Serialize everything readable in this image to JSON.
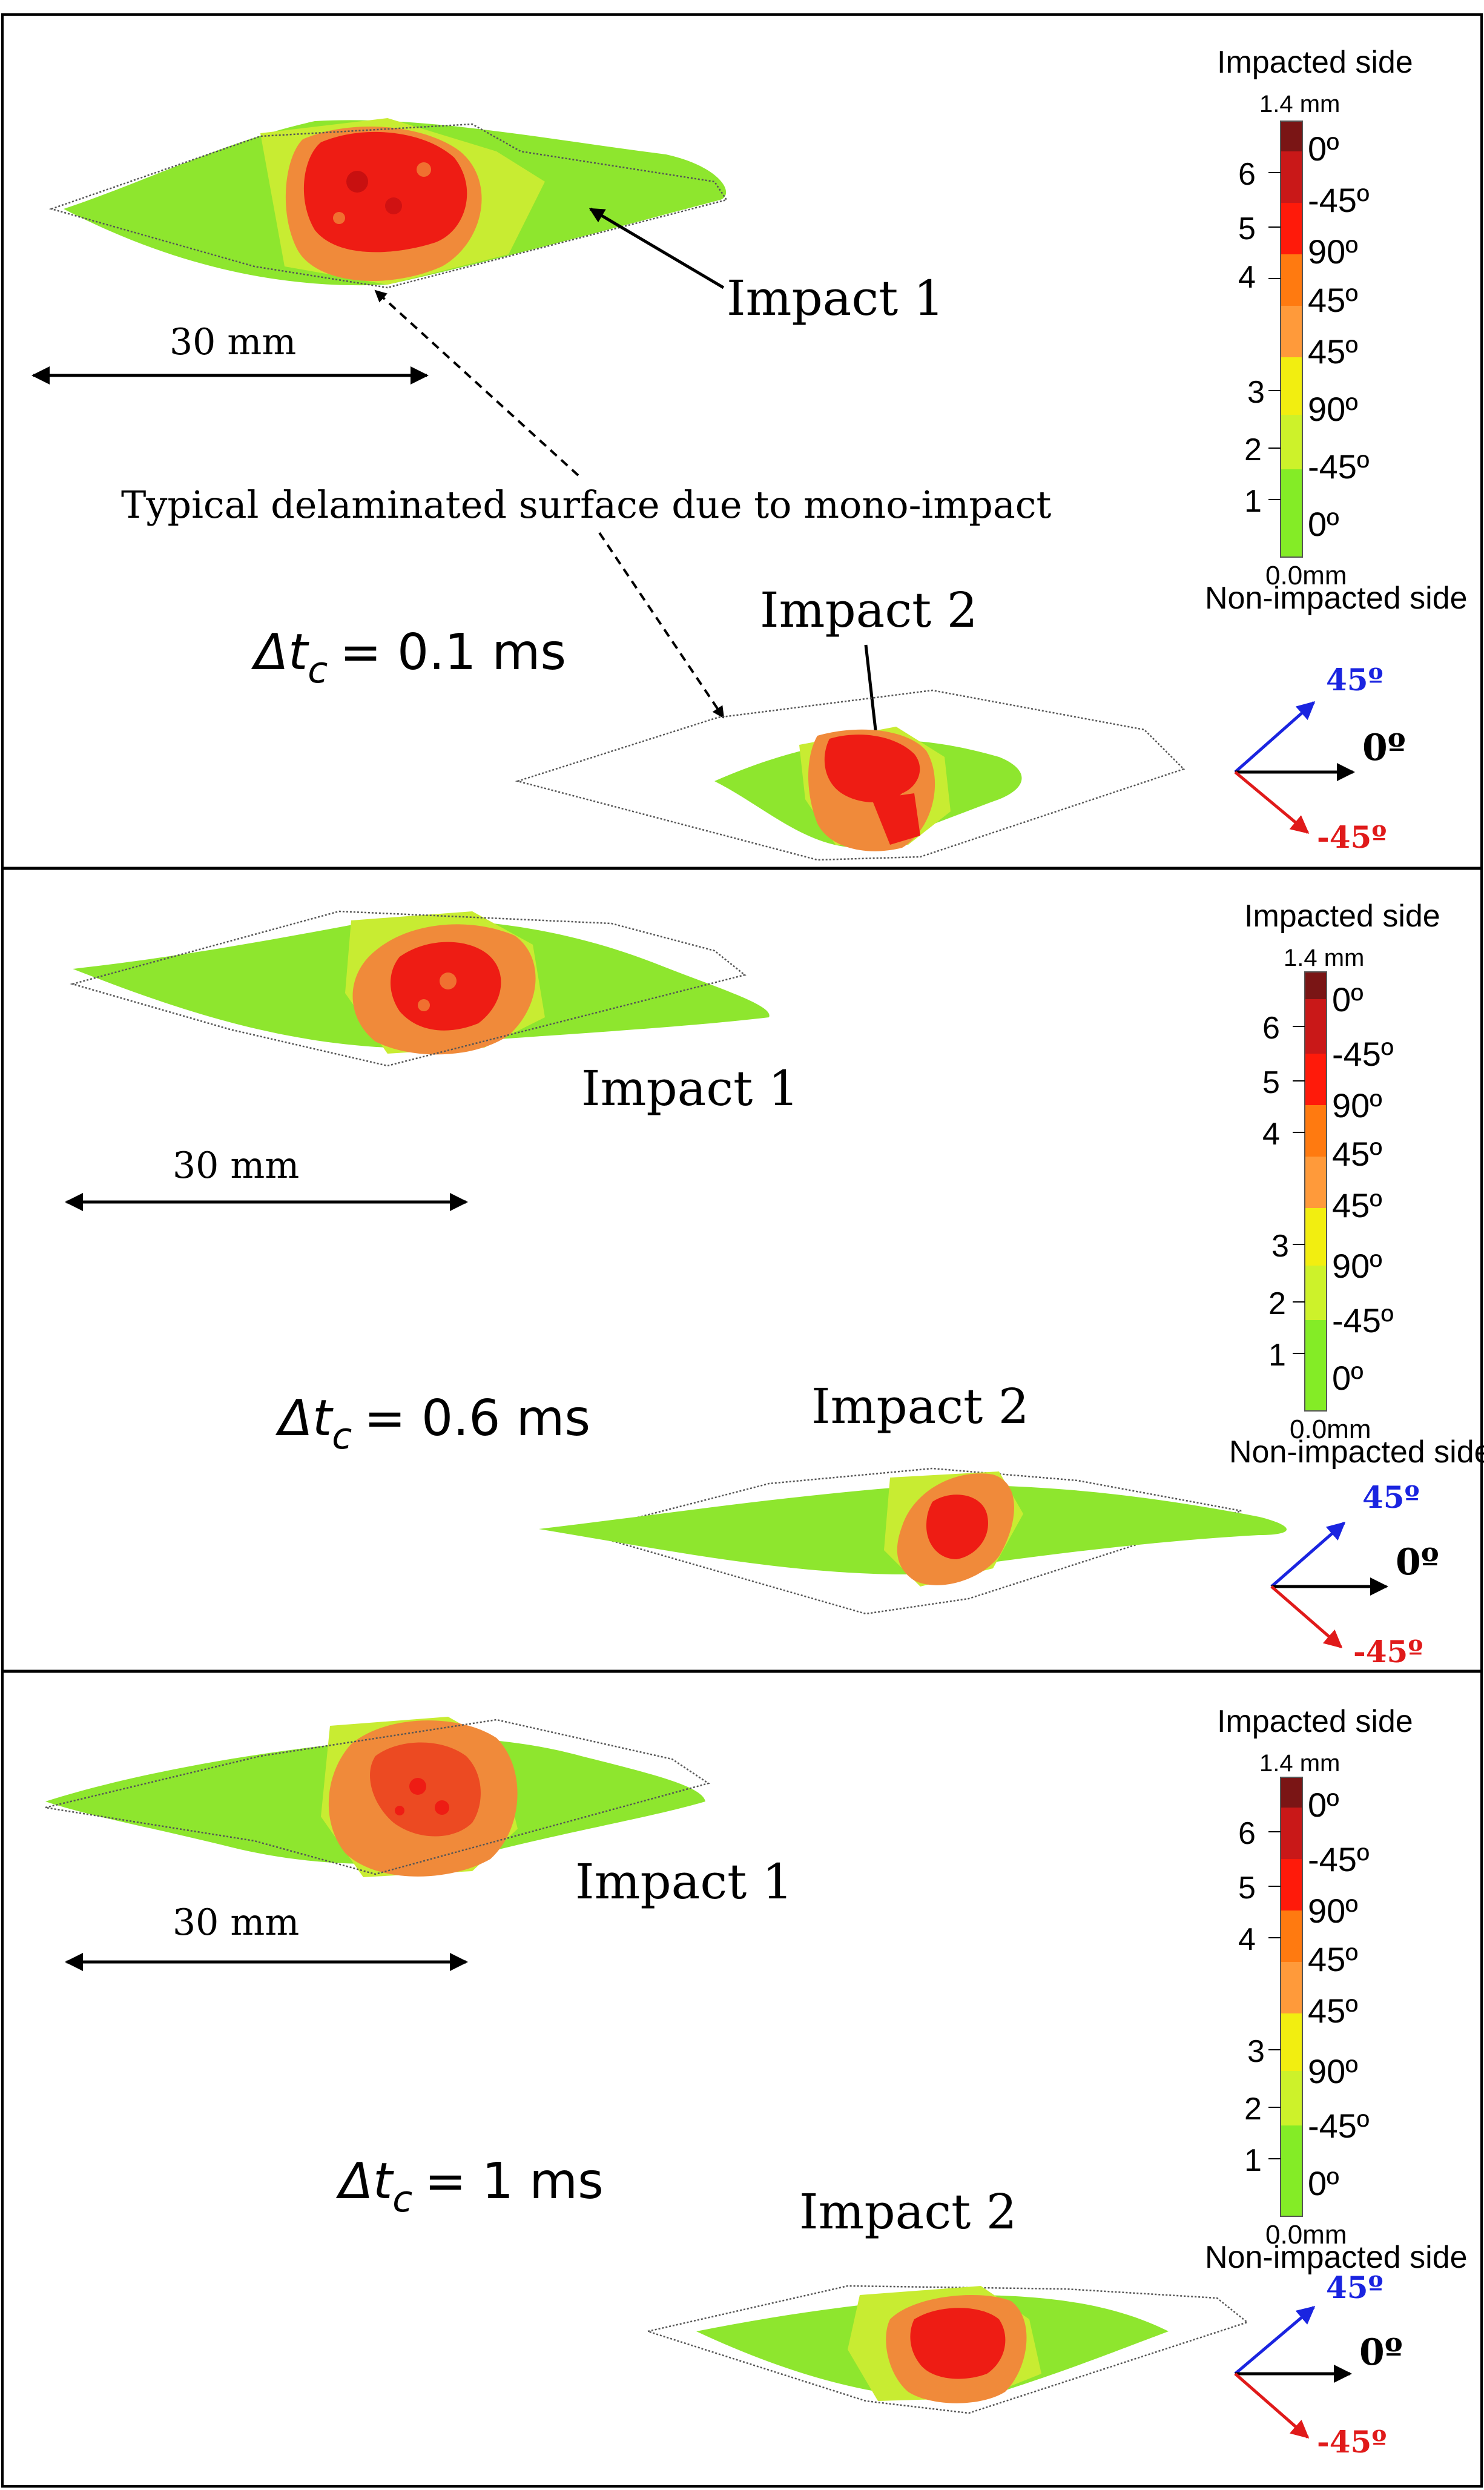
{
  "figure": {
    "panels": [
      {
        "delta_label": "Δt",
        "delta_sub": "c",
        "delta_value": "= 0.1 ms",
        "impact1_label": "Impact 1",
        "impact2_label": "Impact 2",
        "scale_label": "30 mm",
        "annotation": "Typical delaminated surface due to mono-impact"
      },
      {
        "delta_label": "Δt",
        "delta_sub": "c",
        "delta_value": "= 0.6 ms",
        "impact1_label": "Impact 1",
        "impact2_label": "Impact 2",
        "scale_label": "30 mm"
      },
      {
        "delta_label": "Δt",
        "delta_sub": "c",
        "delta_value": "= 1 ms",
        "impact1_label": "Impact 1",
        "impact2_label": "Impact 2",
        "scale_label": "30 mm"
      }
    ],
    "legend": {
      "top_label": "Impacted side",
      "bottom_label": "Non-impacted side",
      "max_label": "1.4 mm",
      "min_label": "0.0mm",
      "interface_numbers": [
        "1",
        "2",
        "3",
        "4",
        "5",
        "6"
      ],
      "plies": [
        {
          "angle": "0º",
          "color": "#7a1515"
        },
        {
          "angle": "-45º",
          "color": "#c91818"
        },
        {
          "angle": "90º",
          "color": "#ff1a0a"
        },
        {
          "angle": "45º",
          "color": "#ff7a10"
        },
        {
          "angle": "45º",
          "color": "#ff9a3a"
        },
        {
          "angle": "90º",
          "color": "#f2ee10"
        },
        {
          "angle": "-45º",
          "color": "#cdf22a"
        },
        {
          "angle": "0º",
          "color": "#84ec26"
        }
      ]
    },
    "axes": {
      "label_45": "45º",
      "label_0": "0º",
      "label_m45": "-45º",
      "color_45": "#1a24e0",
      "color_0": "#000000",
      "color_m45": "#e01a1a"
    },
    "colors": {
      "ply_green": "#8ee62e",
      "ply_yellow_green": "#c8ec32",
      "ply_orange": "#f08a3a",
      "ply_red": "#ee1c14",
      "outline": "#555555"
    }
  }
}
